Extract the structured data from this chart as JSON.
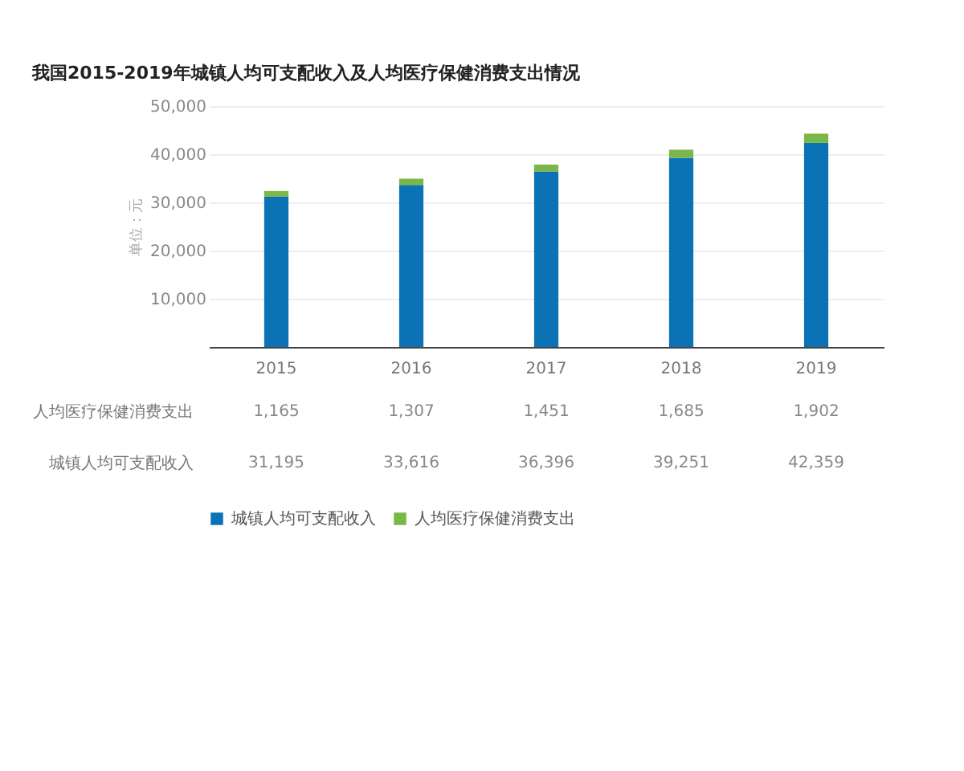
{
  "chart_data": {
    "type": "bar",
    "title": "我国2015-2019年城镇人均可支配收入及人均医疗保健消费支出情况",
    "ylabel": "单位：元",
    "categories": [
      "2015",
      "2016",
      "2017",
      "2018",
      "2019"
    ],
    "series": [
      {
        "name": "城镇人均可支配收入",
        "color": "#0b72b5",
        "values": [
          31195,
          33616,
          36396,
          39251,
          42359
        ],
        "value_labels": [
          "31,195",
          "33,616",
          "36,396",
          "39,251",
          "42,359"
        ]
      },
      {
        "name": "人均医疗保健消费支出",
        "color": "#7ab648",
        "values": [
          1165,
          1307,
          1451,
          1685,
          1902
        ],
        "value_labels": [
          "1,165",
          "1,307",
          "1,451",
          "1,685",
          "1,902"
        ]
      }
    ],
    "stacked": true,
    "ylim": [
      0,
      50000
    ],
    "yticks": [
      {
        "value": 10000,
        "label": "10,000"
      },
      {
        "value": 20000,
        "label": "20,000"
      },
      {
        "value": 30000,
        "label": "30,000"
      },
      {
        "value": 40000,
        "label": "40,000"
      },
      {
        "value": 50000,
        "label": "50,000"
      }
    ],
    "grid": "y",
    "legend": "bottom"
  }
}
